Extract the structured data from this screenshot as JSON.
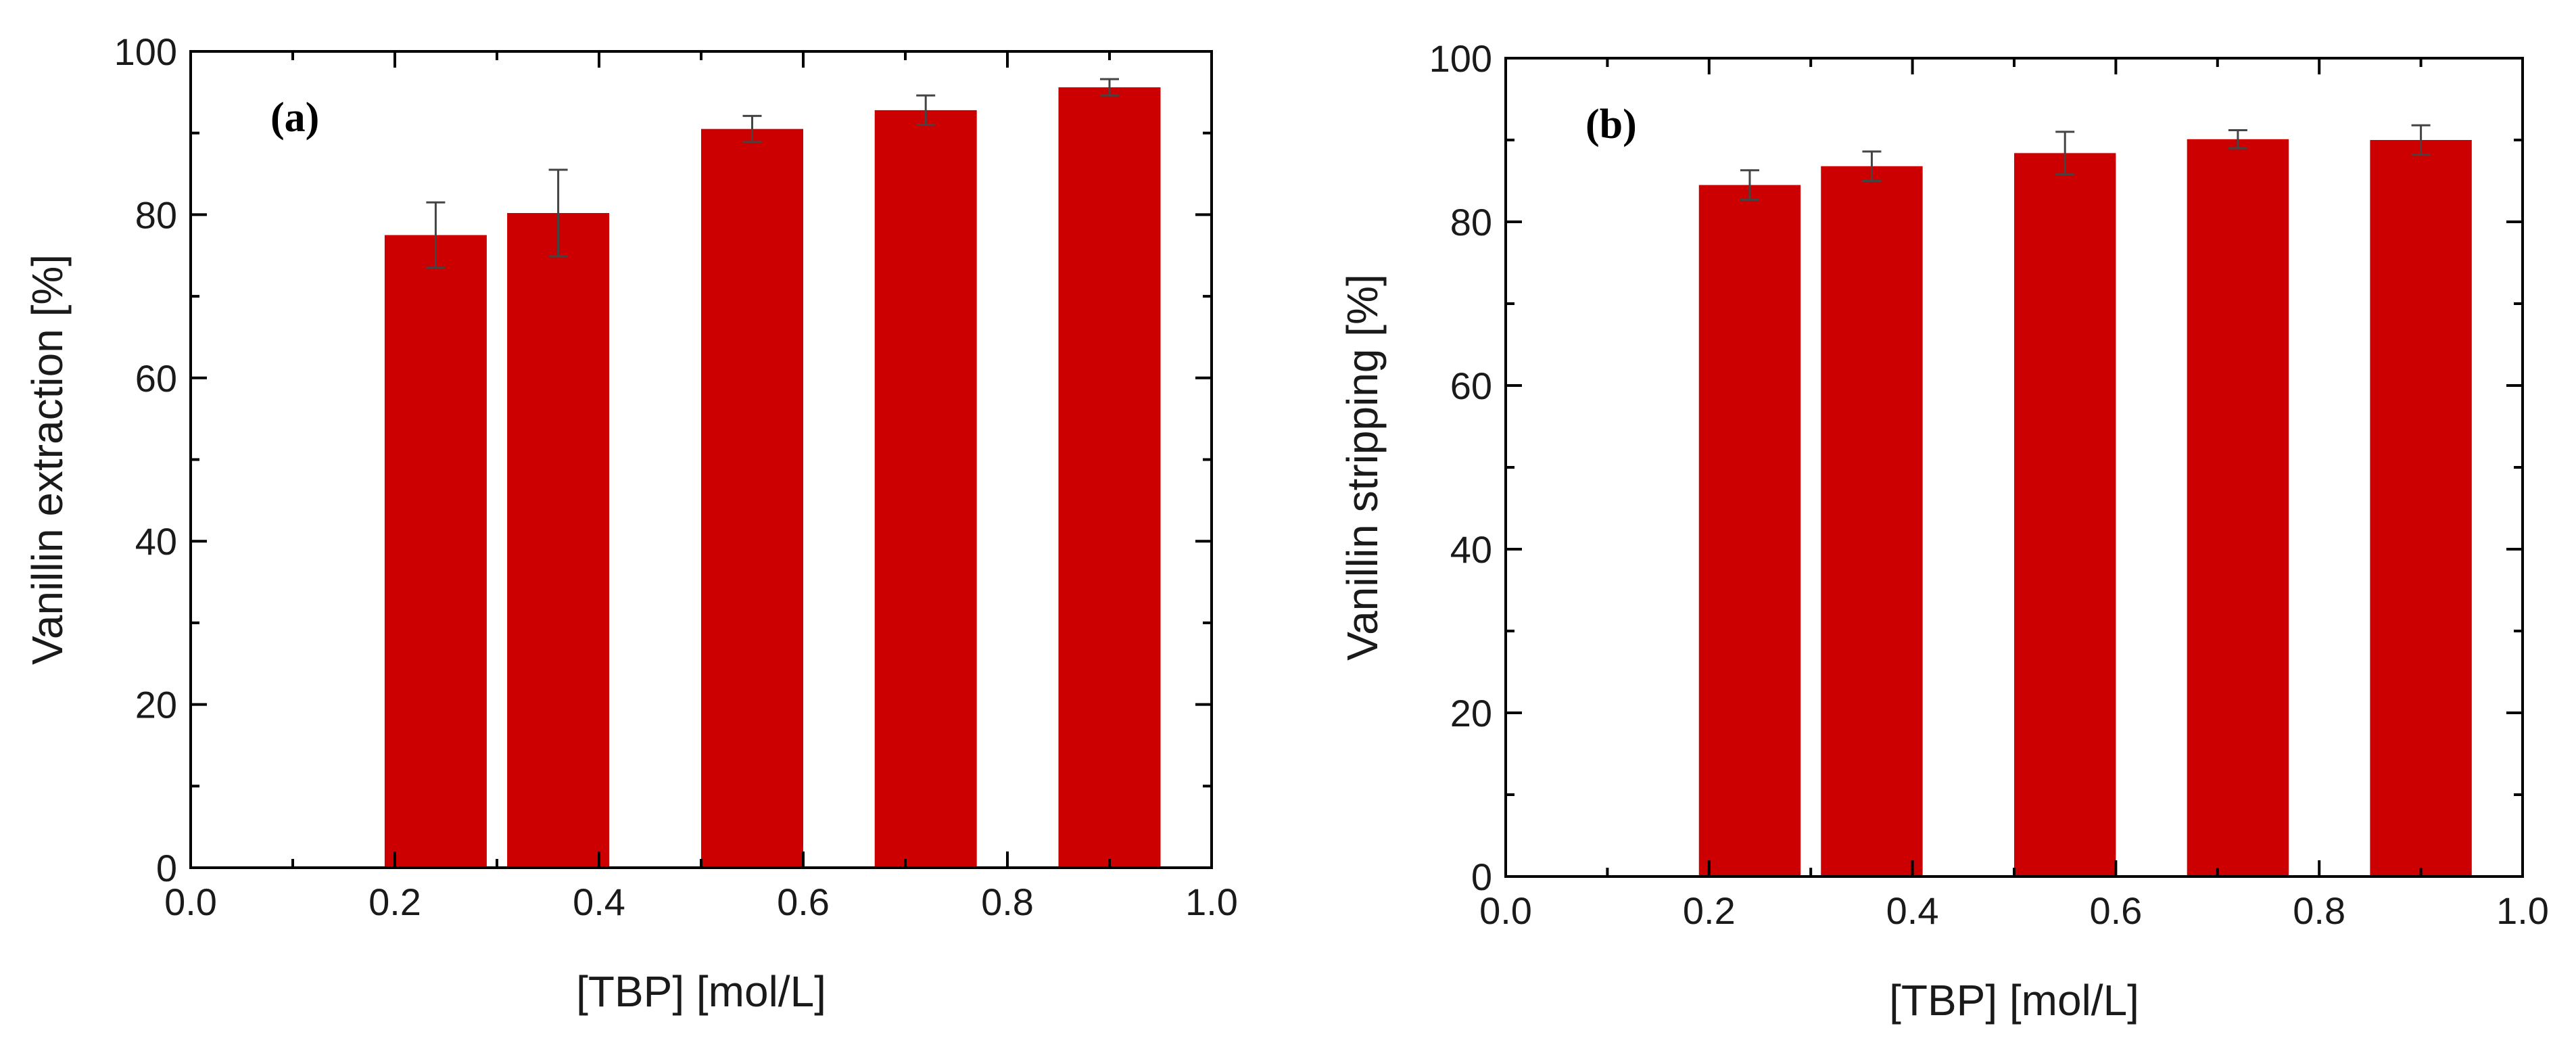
{
  "chart_data": [
    {
      "type": "bar",
      "panel_label": "(a)",
      "x": [
        0.24,
        0.36,
        0.55,
        0.72,
        0.9
      ],
      "values": [
        77.5,
        80.2,
        90.5,
        92.8,
        95.6
      ],
      "errors": [
        4.0,
        5.3,
        1.6,
        1.8,
        1.0
      ],
      "bar_width": 0.1,
      "color": "#cc0000",
      "xlabel": "[TBP] [mol/L]",
      "ylabel": "Vanillin extraction [%]",
      "xlim": [
        0.0,
        1.0
      ],
      "ylim": [
        0,
        100
      ],
      "xticks": [
        "0.0",
        "0.2",
        "0.4",
        "0.6",
        "0.8",
        "1.0"
      ],
      "yticks": [
        "0",
        "20",
        "40",
        "60",
        "80",
        "100"
      ]
    },
    {
      "type": "bar",
      "panel_label": "(b)",
      "x": [
        0.24,
        0.36,
        0.55,
        0.72,
        0.9
      ],
      "values": [
        84.5,
        86.8,
        88.4,
        90.1,
        90.0
      ],
      "errors": [
        1.8,
        1.8,
        2.6,
        1.1,
        1.8
      ],
      "bar_width": 0.1,
      "color": "#cc0000",
      "xlabel": "[TBP] [mol/L]",
      "ylabel": "Vanillin stripping [%]",
      "xlim": [
        0.0,
        1.0
      ],
      "ylim": [
        0,
        100
      ],
      "xticks": [
        "0.0",
        "0.2",
        "0.4",
        "0.6",
        "0.8",
        "1.0"
      ],
      "yticks": [
        "0",
        "20",
        "40",
        "60",
        "80",
        "100"
      ]
    }
  ]
}
